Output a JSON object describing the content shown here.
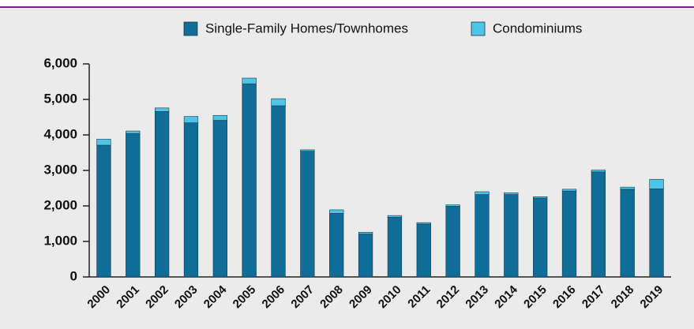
{
  "chart_data": {
    "type": "stacked_bar",
    "categories": [
      "2000",
      "2001",
      "2002",
      "2003",
      "2004",
      "2005",
      "2006",
      "2007",
      "2008",
      "2009",
      "2010",
      "2011",
      "2012",
      "2013",
      "2014",
      "2015",
      "2016",
      "2017",
      "2018",
      "2019"
    ],
    "series": [
      {
        "name": "Single-Family Homes/Townhomes",
        "color": "#0f6d97",
        "values": [
          3710,
          4040,
          4660,
          4340,
          4410,
          5440,
          4820,
          3540,
          1790,
          1210,
          1680,
          1490,
          1990,
          2320,
          2320,
          2220,
          2420,
          2960,
          2470,
          2480
        ]
      },
      {
        "name": "Condominiums",
        "color": "#4ec4e8",
        "values": [
          170,
          70,
          100,
          180,
          140,
          160,
          200,
          40,
          100,
          50,
          50,
          40,
          40,
          80,
          50,
          40,
          50,
          50,
          60,
          270
        ]
      }
    ],
    "ylim": [
      0,
      6000
    ],
    "yticks": [
      0,
      {
        "value": 1000,
        "label": "1,000"
      },
      {
        "value": 2000,
        "label": "2,000"
      },
      {
        "value": 3000,
        "label": "3,000"
      },
      {
        "value": 4000,
        "label": "4,000"
      },
      {
        "value": 5000,
        "label": "5,000"
      },
      {
        "value": 6000,
        "label": "6,000"
      }
    ],
    "legend": "top"
  }
}
